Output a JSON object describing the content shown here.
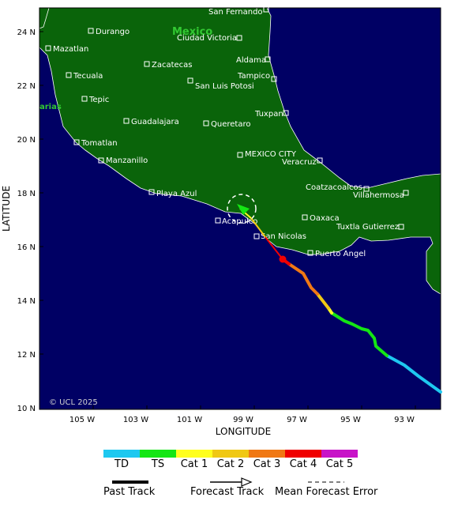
{
  "map": {
    "country_label": "Mexico",
    "partial_label": "arias",
    "copyright": "© UCL 2025",
    "x_axis_title": "LONGITUDE",
    "y_axis_title": "LATITUDE",
    "lon_ticks": [
      "105 W",
      "103 W",
      "101 W",
      "99 W",
      "97 W",
      "95 W",
      "93 W"
    ],
    "lat_ticks": [
      "24 N",
      "22 N",
      "20 N",
      "18 N",
      "16 N",
      "14 N",
      "12 N",
      "10 N"
    ],
    "cities": [
      {
        "name": "San Fernando"
      },
      {
        "name": "Durango"
      },
      {
        "name": "Ciudad Victoria"
      },
      {
        "name": "Mazatlan"
      },
      {
        "name": "Zacatecas"
      },
      {
        "name": "Aldama"
      },
      {
        "name": "Tecuala"
      },
      {
        "name": "Tampico"
      },
      {
        "name": "San Luis Potosi"
      },
      {
        "name": "Tepic"
      },
      {
        "name": "Tuxpan"
      },
      {
        "name": "Guadalajara"
      },
      {
        "name": "Queretaro"
      },
      {
        "name": "Tomatlan"
      },
      {
        "name": "MEXICO CITY"
      },
      {
        "name": "Manzanillo"
      },
      {
        "name": "Veracruz"
      },
      {
        "name": "Coatzacoalcos"
      },
      {
        "name": "Playa Azul"
      },
      {
        "name": "Villahermosa"
      },
      {
        "name": "Oaxaca"
      },
      {
        "name": "Acapulco"
      },
      {
        "name": "Tuxtla Gutierrez"
      },
      {
        "name": "San Nicolas"
      },
      {
        "name": "Puerto Angel"
      }
    ]
  },
  "legend": {
    "categories": [
      {
        "label": "TD",
        "color": "#1ec8f0"
      },
      {
        "label": "TS",
        "color": "#14e614"
      },
      {
        "label": "Cat 1",
        "color": "#ffff1e"
      },
      {
        "label": "Cat 2",
        "color": "#f0c814"
      },
      {
        "label": "Cat 3",
        "color": "#f07814"
      },
      {
        "label": "Cat 4",
        "color": "#f00000"
      },
      {
        "label": "Cat 5",
        "color": "#c814c8"
      }
    ],
    "past_track": "Past Track",
    "forecast_track": "Forecast Track",
    "mean_error": "Mean Forecast Error"
  },
  "colors": {
    "ocean": "#000064",
    "land": "#0a640a",
    "country_label": "#32c832",
    "track_marker": "#f00000"
  }
}
